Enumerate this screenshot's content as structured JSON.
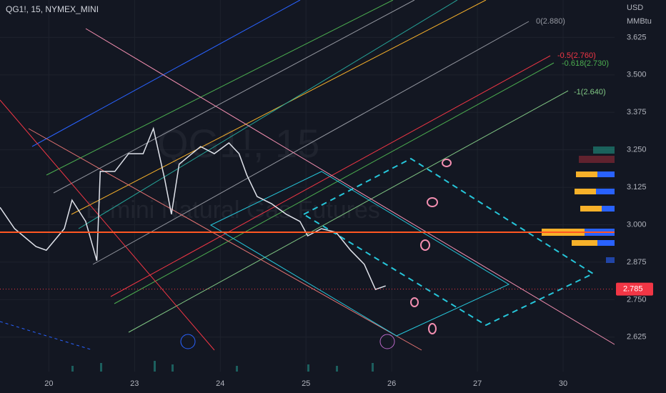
{
  "chart_data": {
    "type": "line",
    "title": "QG1!, 15, NYMEX_MINI",
    "watermark": "QG1!, 15",
    "subtitle": "E-mini Natural Gas Futures",
    "currency": "USD",
    "unit": "MMBtu",
    "color": "#e0e3eb",
    "x": [
      -0.57,
      -0.4,
      -0.15,
      -0.03,
      0.18,
      0.27,
      0.43,
      0.56,
      0.6,
      0.77,
      0.93,
      1.1,
      1.22,
      1.35,
      1.43,
      1.52,
      1.77,
      1.93,
      2.1,
      2.22,
      2.31,
      2.43,
      2.6,
      2.77,
      2.93,
      3.02,
      3.18,
      3.35,
      3.52,
      3.68,
      3.81,
      3.93
    ],
    "values": [
      3.058,
      2.987,
      2.927,
      2.915,
      2.987,
      3.082,
      3.011,
      2.88,
      3.178,
      3.178,
      3.237,
      3.237,
      3.321,
      3.154,
      3.035,
      3.202,
      3.261,
      3.237,
      3.273,
      3.237,
      3.166,
      3.094,
      3.07,
      3.035,
      3.011,
      2.963,
      2.987,
      2.975,
      2.915,
      2.868,
      2.784,
      2.796
    ],
    "level": 2.975,
    "last_price": 2.785,
    "last_price_label": "2.785",
    "fib_labels": [
      "0(2.880)",
      "-0.5(2.760)",
      "-0.618(2.730)",
      "-1(2.640)"
    ],
    "xlim": [
      -0.57,
      6.6
    ],
    "xticks": [
      {
        "value": 0,
        "label": "20"
      },
      {
        "value": 1,
        "label": "23"
      },
      {
        "value": 2,
        "label": "24"
      },
      {
        "value": 3,
        "label": "25"
      },
      {
        "value": 4,
        "label": "26"
      },
      {
        "value": 5,
        "label": "27"
      },
      {
        "value": 6,
        "label": "30"
      }
    ],
    "ylim": [
      2.51,
      3.75
    ],
    "yticks": [
      2.625,
      {
        "value": 2.75,
        "label": "2.750"
      },
      2.875,
      {
        "value": 3,
        "label": "3.000"
      },
      3.125,
      {
        "value": 3.25,
        "label": "3.250"
      },
      3.375,
      {
        "value": 3.5,
        "label": "3.500"
      },
      3.625
    ],
    "grid": true
  }
}
